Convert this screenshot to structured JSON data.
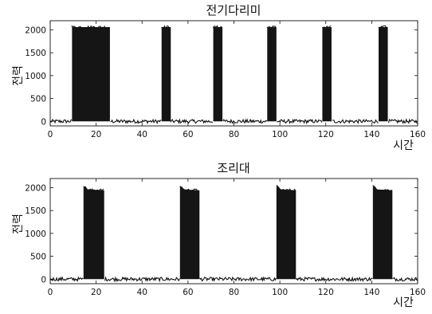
{
  "chart_data": [
    {
      "type": "line",
      "title": "전기다리미",
      "xlabel": "시간",
      "ylabel": "전력",
      "xlim": [
        0,
        160
      ],
      "ylim": [
        -100,
        2200
      ],
      "xticks": [
        0,
        20,
        40,
        60,
        80,
        100,
        120,
        140,
        160
      ],
      "yticks": [
        0,
        500,
        1000,
        1500,
        2000
      ],
      "grid": false,
      "baseline": 0,
      "baseline_noise": 40,
      "on_noise": 60,
      "series": [
        {
          "x": [
            0,
            9.5,
            9.5,
            26,
            26,
            48.5,
            48.5,
            52.5,
            52.5,
            71,
            71,
            75,
            75,
            94.5,
            94.5,
            98.5,
            98.5,
            118.5,
            118.5,
            122.5,
            122.5,
            143,
            143,
            147,
            147,
            160
          ],
          "values": [
            0,
            0,
            2060,
            2060,
            0,
            0,
            2060,
            2060,
            0,
            0,
            2060,
            2060,
            0,
            0,
            2060,
            2060,
            0,
            0,
            2060,
            2060,
            0,
            0,
            2060,
            2060,
            0,
            0
          ]
        }
      ],
      "pulses": [
        {
          "start": 9.5,
          "end": 26,
          "level": 2060
        },
        {
          "start": 48.5,
          "end": 52.5,
          "level": 2060
        },
        {
          "start": 71,
          "end": 75,
          "level": 2060
        },
        {
          "start": 94.5,
          "end": 98.5,
          "level": 2060
        },
        {
          "start": 118.5,
          "end": 122.5,
          "level": 2060
        },
        {
          "start": 143,
          "end": 147,
          "level": 2060
        }
      ]
    },
    {
      "type": "line",
      "title": "조리대",
      "xlabel": "시간",
      "ylabel": "전력",
      "xlim": [
        0,
        160
      ],
      "ylim": [
        -100,
        2200
      ],
      "xticks": [
        0,
        20,
        40,
        60,
        80,
        100,
        120,
        140,
        160
      ],
      "yticks": [
        0,
        500,
        1000,
        1500,
        2000
      ],
      "grid": false,
      "baseline": 0,
      "baseline_noise": 40,
      "on_noise": 60,
      "series": [
        {
          "x": [
            0,
            14.5,
            14.5,
            16.5,
            23.5,
            23.5,
            56.5,
            56.5,
            58.5,
            65,
            65,
            98.5,
            98.5,
            100.5,
            107,
            107,
            140.5,
            140.5,
            142.5,
            149,
            149,
            160
          ],
          "values": [
            0,
            0,
            2040,
            1960,
            1940,
            0,
            0,
            2040,
            1960,
            1940,
            0,
            0,
            2040,
            1960,
            1940,
            0,
            0,
            2040,
            1960,
            1940,
            0,
            0
          ]
        }
      ],
      "pulses": [
        {
          "start": 14.5,
          "end": 23.5,
          "peak": 2040,
          "level": 1950
        },
        {
          "start": 56.5,
          "end": 65,
          "peak": 2040,
          "level": 1950
        },
        {
          "start": 98.5,
          "end": 107,
          "peak": 2040,
          "level": 1950
        },
        {
          "start": 140.5,
          "end": 149,
          "peak": 2040,
          "level": 1950
        }
      ]
    }
  ]
}
